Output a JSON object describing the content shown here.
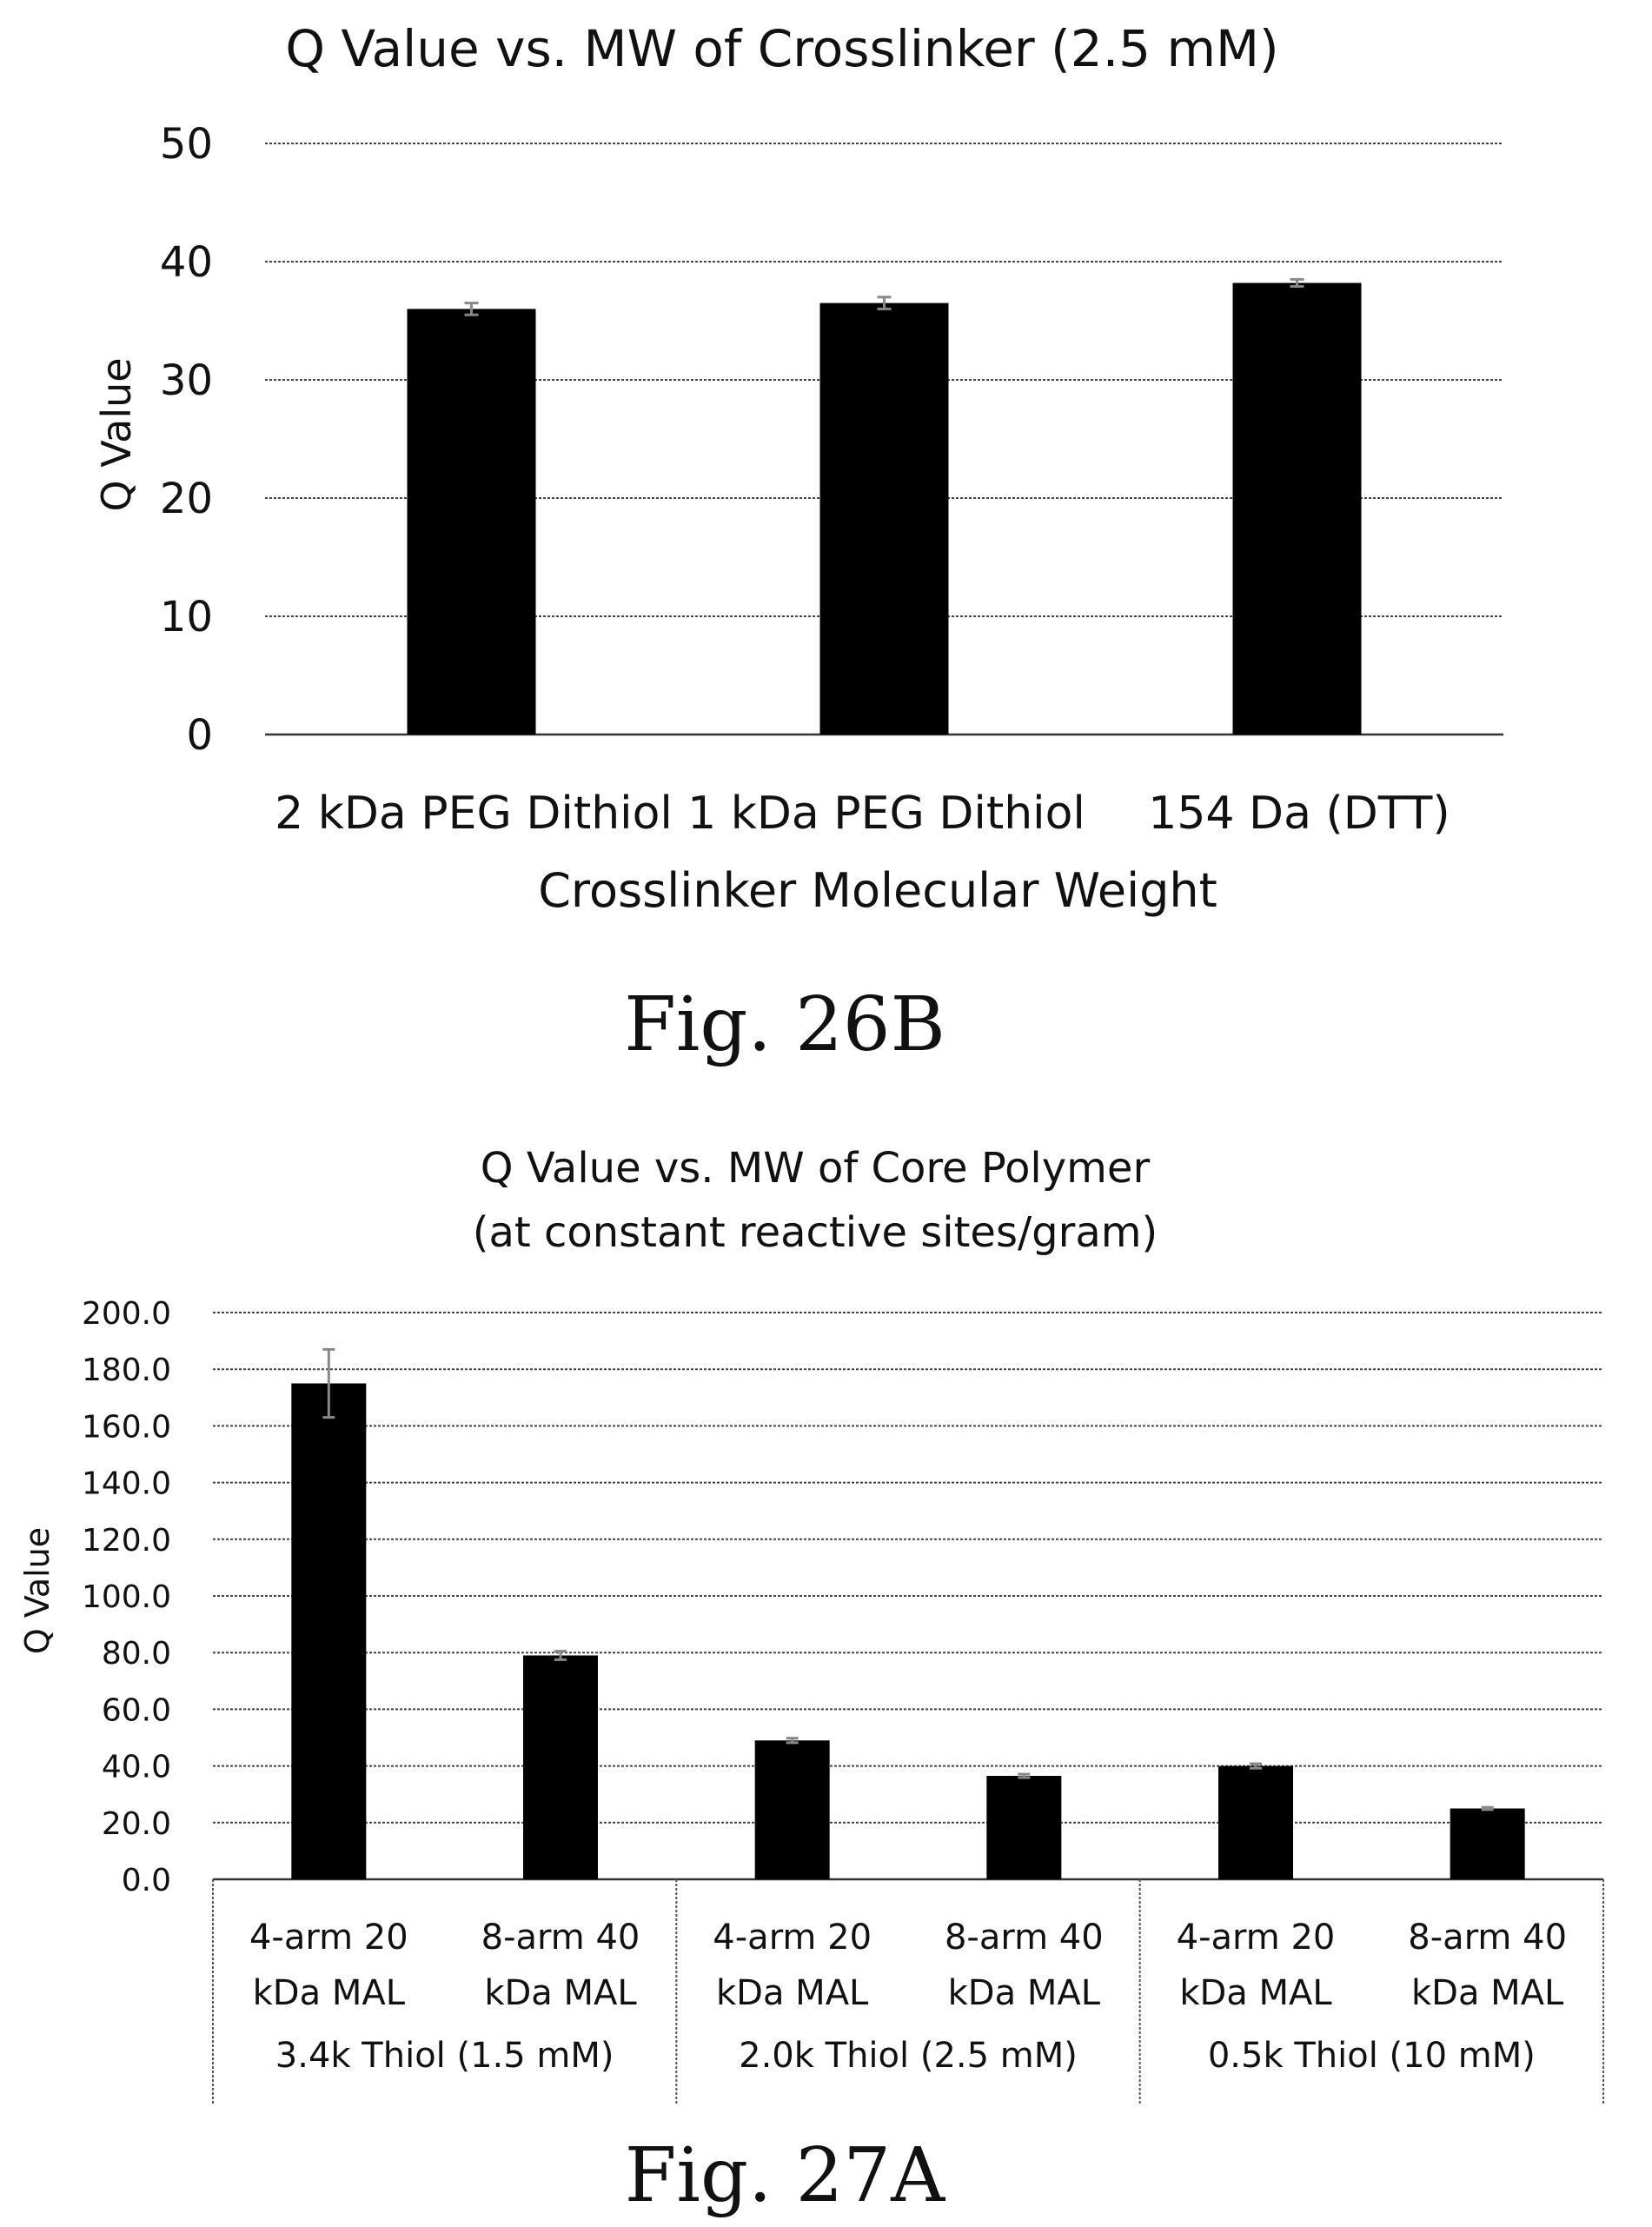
{
  "chart_data": [
    {
      "type": "bar",
      "title": "Q Value vs. MW of Crosslinker (2.5 mM)",
      "xlabel": "Crosslinker Molecular Weight",
      "ylabel": "Q Value",
      "categories": [
        "2 kDa PEG Dithiol",
        "1 kDa PEG Dithiol",
        "154 Da (DTT)"
      ],
      "values": [
        36.0,
        36.5,
        38.2
      ],
      "errors": [
        0.5,
        0.5,
        0.3
      ],
      "ylim": [
        0,
        50
      ],
      "yticks": [
        "0",
        "10",
        "20",
        "30",
        "40",
        "50"
      ],
      "grid": true,
      "figure_label": "Fig. 26B"
    },
    {
      "type": "bar",
      "title": "Q Value vs. MW of Core Polymer",
      "subtitle": "(at constant reactive sites/gram)",
      "ylabel": "Q Value",
      "groups": [
        {
          "label": "3.4k Thiol (1.5 mM)",
          "categories": [
            [
              "4-arm 20",
              "kDa MAL"
            ],
            [
              "8-arm 40",
              "kDa MAL"
            ]
          ],
          "values": [
            175.0,
            79.0
          ],
          "errors": [
            12.0,
            1.5
          ]
        },
        {
          "label": "2.0k Thiol (2.5 mM)",
          "categories": [
            [
              "4-arm 20",
              "kDa MAL"
            ],
            [
              "8-arm 40",
              "kDa MAL"
            ]
          ],
          "values": [
            49.0,
            36.5
          ],
          "errors": [
            0.8,
            0.6
          ]
        },
        {
          "label": "0.5k Thiol (10 mM)",
          "categories": [
            [
              "4-arm 20",
              "kDa MAL"
            ],
            [
              "8-arm 40",
              "kDa MAL"
            ]
          ],
          "values": [
            40.0,
            25.0
          ],
          "errors": [
            0.8,
            0.4
          ]
        }
      ],
      "ylim": [
        0,
        200
      ],
      "yticks": [
        "0.0",
        "20.0",
        "40.0",
        "60.0",
        "80.0",
        "100.0",
        "120.0",
        "140.0",
        "160.0",
        "180.0",
        "200.0"
      ],
      "grid": true,
      "figure_label": "Fig. 27A"
    }
  ]
}
